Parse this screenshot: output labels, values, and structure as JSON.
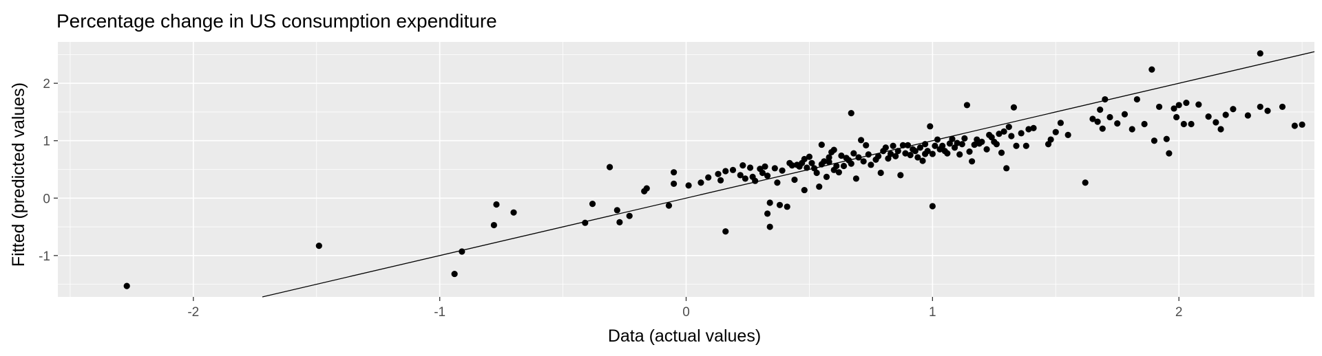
{
  "chart_data": {
    "type": "scatter",
    "title": "Percentage change in US consumption expenditure",
    "xlabel": "Data (actual values)",
    "ylabel": "Fitted (predicted values)",
    "xlim": [
      -2.55,
      2.55
    ],
    "ylim": [
      -1.72,
      2.72
    ],
    "x_ticks": [
      -2,
      -1,
      0,
      1,
      2
    ],
    "y_ticks": [
      -1,
      0,
      1,
      2
    ],
    "grid": true,
    "colors": {
      "panel": "#ebebeb",
      "grid": "#ffffff",
      "points": "#000000",
      "line": "#000000"
    },
    "reference_line": {
      "type": "y=x",
      "color": "#000000"
    },
    "series": [
      {
        "points": [
          [
            -2.27,
            -1.53
          ],
          [
            -1.49,
            -0.83
          ],
          [
            -0.94,
            -1.32
          ],
          [
            -0.91,
            -0.93
          ],
          [
            -0.78,
            -0.47
          ],
          [
            -0.77,
            -0.11
          ],
          [
            -0.7,
            -0.25
          ],
          [
            -0.41,
            -0.43
          ],
          [
            -0.38,
            -0.1
          ],
          [
            -0.31,
            0.54
          ],
          [
            -0.28,
            -0.21
          ],
          [
            -0.27,
            -0.42
          ],
          [
            -0.23,
            -0.31
          ],
          [
            -0.17,
            0.12
          ],
          [
            -0.16,
            0.17
          ],
          [
            -0.07,
            -0.13
          ],
          [
            -0.05,
            0.45
          ],
          [
            -0.05,
            0.25
          ],
          [
            0.01,
            0.22
          ],
          [
            0.06,
            0.27
          ],
          [
            0.09,
            0.36
          ],
          [
            0.13,
            0.42
          ],
          [
            0.14,
            0.31
          ],
          [
            0.16,
            0.47
          ],
          [
            0.16,
            -0.58
          ],
          [
            0.19,
            0.49
          ],
          [
            0.22,
            0.4
          ],
          [
            0.23,
            0.57
          ],
          [
            0.24,
            0.34
          ],
          [
            0.26,
            0.53
          ],
          [
            0.27,
            0.37
          ],
          [
            0.28,
            0.3
          ],
          [
            0.3,
            0.51
          ],
          [
            0.31,
            0.44
          ],
          [
            0.32,
            0.55
          ],
          [
            0.33,
            0.39
          ],
          [
            0.33,
            -0.27
          ],
          [
            0.34,
            -0.08
          ],
          [
            0.34,
            -0.5
          ],
          [
            0.36,
            0.52
          ],
          [
            0.37,
            0.27
          ],
          [
            0.38,
            -0.12
          ],
          [
            0.39,
            0.48
          ],
          [
            0.41,
            -0.15
          ],
          [
            0.42,
            0.61
          ],
          [
            0.43,
            0.57
          ],
          [
            0.44,
            0.32
          ],
          [
            0.45,
            0.58
          ],
          [
            0.46,
            0.55
          ],
          [
            0.47,
            0.61
          ],
          [
            0.48,
            0.14
          ],
          [
            0.48,
            0.68
          ],
          [
            0.49,
            0.53
          ],
          [
            0.5,
            0.72
          ],
          [
            0.51,
            0.61
          ],
          [
            0.52,
            0.52
          ],
          [
            0.53,
            0.44
          ],
          [
            0.54,
            0.2
          ],
          [
            0.55,
            0.59
          ],
          [
            0.55,
            0.93
          ],
          [
            0.56,
            0.64
          ],
          [
            0.57,
            0.37
          ],
          [
            0.58,
            0.71
          ],
          [
            0.58,
            0.63
          ],
          [
            0.59,
            0.8
          ],
          [
            0.6,
            0.49
          ],
          [
            0.6,
            0.84
          ],
          [
            0.61,
            0.56
          ],
          [
            0.62,
            0.45
          ],
          [
            0.63,
            0.74
          ],
          [
            0.64,
            0.56
          ],
          [
            0.65,
            0.7
          ],
          [
            0.66,
            0.66
          ],
          [
            0.67,
            0.6
          ],
          [
            0.67,
            1.48
          ],
          [
            0.68,
            0.78
          ],
          [
            0.69,
            0.34
          ],
          [
            0.7,
            0.71
          ],
          [
            0.71,
            1.01
          ],
          [
            0.72,
            0.64
          ],
          [
            0.73,
            0.92
          ],
          [
            0.74,
            0.76
          ],
          [
            0.75,
            0.58
          ],
          [
            0.77,
            0.67
          ],
          [
            0.78,
            0.73
          ],
          [
            0.79,
            0.44
          ],
          [
            0.8,
            0.82
          ],
          [
            0.81,
            0.88
          ],
          [
            0.82,
            0.69
          ],
          [
            0.83,
            0.77
          ],
          [
            0.84,
            0.91
          ],
          [
            0.85,
            0.73
          ],
          [
            0.86,
            0.82
          ],
          [
            0.87,
            0.4
          ],
          [
            0.88,
            0.92
          ],
          [
            0.89,
            0.78
          ],
          [
            0.9,
            0.92
          ],
          [
            0.91,
            0.75
          ],
          [
            0.92,
            0.85
          ],
          [
            0.93,
            0.82
          ],
          [
            0.94,
            0.71
          ],
          [
            0.95,
            0.88
          ],
          [
            0.96,
            0.65
          ],
          [
            0.97,
            0.77
          ],
          [
            0.97,
            0.94
          ],
          [
            0.98,
            0.82
          ],
          [
            0.99,
            1.25
          ],
          [
            1.0,
            0.77
          ],
          [
            1.0,
            -0.14
          ],
          [
            1.01,
            0.91
          ],
          [
            1.02,
            1.02
          ],
          [
            1.03,
            0.85
          ],
          [
            1.04,
            0.91
          ],
          [
            1.05,
            0.82
          ],
          [
            1.06,
            0.78
          ],
          [
            1.07,
            0.95
          ],
          [
            1.08,
            1.03
          ],
          [
            1.09,
            0.88
          ],
          [
            1.1,
            0.96
          ],
          [
            1.11,
            0.76
          ],
          [
            1.12,
            0.94
          ],
          [
            1.13,
            1.04
          ],
          [
            1.14,
            1.62
          ],
          [
            1.15,
            0.81
          ],
          [
            1.16,
            0.64
          ],
          [
            1.17,
            0.93
          ],
          [
            1.18,
            1.02
          ],
          [
            1.19,
            0.95
          ],
          [
            1.2,
            0.98
          ],
          [
            1.22,
            0.85
          ],
          [
            1.23,
            1.1
          ],
          [
            1.24,
            1.06
          ],
          [
            1.25,
            0.98
          ],
          [
            1.26,
            0.94
          ],
          [
            1.27,
            1.12
          ],
          [
            1.28,
            0.79
          ],
          [
            1.29,
            1.16
          ],
          [
            1.3,
            0.52
          ],
          [
            1.31,
            1.24
          ],
          [
            1.32,
            1.08
          ],
          [
            1.33,
            1.58
          ],
          [
            1.34,
            0.91
          ],
          [
            1.36,
            1.13
          ],
          [
            1.38,
            0.91
          ],
          [
            1.39,
            1.2
          ],
          [
            1.41,
            1.22
          ],
          [
            1.47,
            0.94
          ],
          [
            1.48,
            1.02
          ],
          [
            1.5,
            1.15
          ],
          [
            1.52,
            1.31
          ],
          [
            1.55,
            1.1
          ],
          [
            1.62,
            0.27
          ],
          [
            1.65,
            1.38
          ],
          [
            1.67,
            1.33
          ],
          [
            1.68,
            1.54
          ],
          [
            1.69,
            1.21
          ],
          [
            1.7,
            1.72
          ],
          [
            1.72,
            1.41
          ],
          [
            1.75,
            1.3
          ],
          [
            1.78,
            1.46
          ],
          [
            1.81,
            1.2
          ],
          [
            1.83,
            1.72
          ],
          [
            1.86,
            1.29
          ],
          [
            1.89,
            2.24
          ],
          [
            1.9,
            1.0
          ],
          [
            1.92,
            1.59
          ],
          [
            1.95,
            1.03
          ],
          [
            1.96,
            0.78
          ],
          [
            1.98,
            1.56
          ],
          [
            1.99,
            1.41
          ],
          [
            2.0,
            1.62
          ],
          [
            2.02,
            1.29
          ],
          [
            2.03,
            1.66
          ],
          [
            2.05,
            1.29
          ],
          [
            2.08,
            1.63
          ],
          [
            2.12,
            1.42
          ],
          [
            2.15,
            1.32
          ],
          [
            2.17,
            1.2
          ],
          [
            2.19,
            1.45
          ],
          [
            2.22,
            1.55
          ],
          [
            2.28,
            1.44
          ],
          [
            2.33,
            1.59
          ],
          [
            2.36,
            1.52
          ],
          [
            2.42,
            1.59
          ],
          [
            2.47,
            1.26
          ],
          [
            2.5,
            1.28
          ],
          [
            2.33,
            2.52
          ]
        ]
      }
    ]
  }
}
